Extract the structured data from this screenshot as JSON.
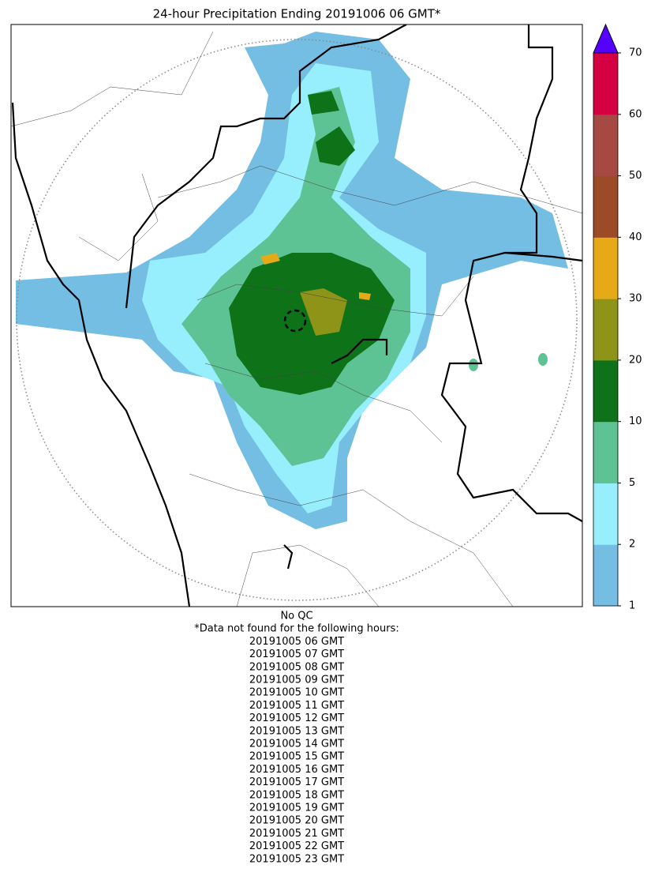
{
  "title": "24-hour Precipitation Ending 20191006 06 GMT*",
  "colorbar": {
    "ticks": [
      1,
      2,
      5,
      10,
      20,
      30,
      40,
      50,
      60,
      70
    ],
    "colors": [
      "#74bde3",
      "#97eefc",
      "#5dc294",
      "#0d7218",
      "#8d9418",
      "#e6a918",
      "#9b4b25",
      "#a54942",
      "#d50042"
    ],
    "extend_color": "#5500ff"
  },
  "footer": {
    "qc": "No QC",
    "note": "*Data not found for the following hours:",
    "missing_hours": [
      "20191005 06 GMT",
      "20191005 07 GMT",
      "20191005 08 GMT",
      "20191005 09 GMT",
      "20191005 10 GMT",
      "20191005 11 GMT",
      "20191005 12 GMT",
      "20191005 13 GMT",
      "20191005 14 GMT",
      "20191005 15 GMT",
      "20191005 16 GMT",
      "20191005 17 GMT",
      "20191005 18 GMT",
      "20191005 19 GMT",
      "20191005 20 GMT",
      "20191005 21 GMT",
      "20191005 22 GMT",
      "20191005 23 GMT"
    ]
  }
}
